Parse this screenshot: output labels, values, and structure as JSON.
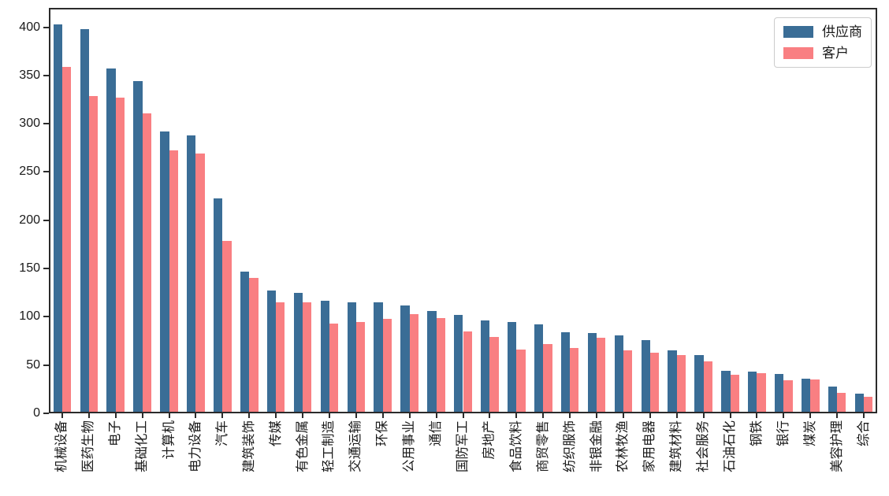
{
  "chart_data": {
    "type": "bar",
    "title": "",
    "xlabel": "",
    "ylabel": "",
    "grid": false,
    "legend_position": "upper right",
    "ylim": [
      0,
      420
    ],
    "yticks": [
      0,
      50,
      100,
      150,
      200,
      250,
      300,
      350,
      400
    ],
    "categories": [
      "机械设备",
      "医药生物",
      "电子",
      "基础化工",
      "计算机",
      "电力设备",
      "汽车",
      "建筑装饰",
      "传媒",
      "有色金属",
      "轻工制造",
      "交通运输",
      "环保",
      "公用事业",
      "通信",
      "国防军工",
      "房地产",
      "食品饮料",
      "商贸零售",
      "纺织服饰",
      "非银金融",
      "农林牧渔",
      "家用电器",
      "建筑材料",
      "社会服务",
      "石油石化",
      "钢铁",
      "银行",
      "煤炭",
      "美容护理",
      "综合"
    ],
    "series": [
      {
        "name": "供应商",
        "color": "#3A6D96",
        "values": [
          403,
          398,
          357,
          344,
          292,
          288,
          223,
          147,
          127,
          125,
          117,
          115,
          115,
          112,
          106,
          102,
          96,
          95,
          92,
          84,
          83,
          81,
          76,
          65,
          60,
          44,
          43,
          41,
          36,
          28,
          20
        ]
      },
      {
        "name": "客户",
        "color": "#F97F82",
        "values": [
          359,
          329,
          327,
          311,
          272,
          269,
          179,
          140,
          115,
          115,
          93,
          95,
          98,
          103,
          99,
          85,
          79,
          66,
          72,
          68,
          78,
          65,
          63,
          60,
          54,
          40,
          42,
          34,
          35,
          21,
          17
        ]
      }
    ]
  }
}
